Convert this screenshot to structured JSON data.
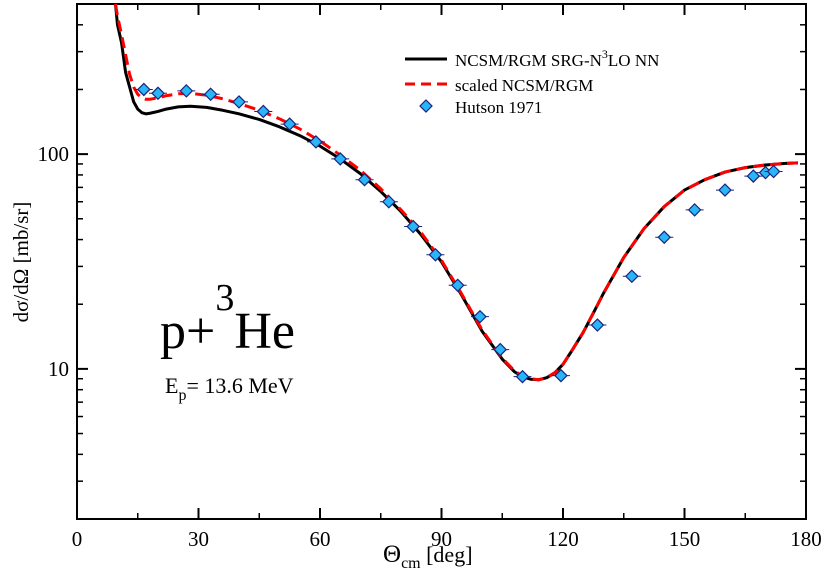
{
  "chart_data": {
    "type": "line",
    "title": "",
    "xlabel": "Θcm [deg]",
    "xlabel_main": "Θ",
    "xlabel_sub": "cm",
    "xlabel_unit": " [deg]",
    "ylabel": "dσ/dΩ [mb/sr]",
    "y_scale": "log",
    "xlim": [
      0,
      180
    ],
    "ylim": [
      2,
      500
    ],
    "x_ticks": [
      0,
      30,
      60,
      90,
      120,
      150,
      180
    ],
    "x_tick_labels": [
      "0",
      "30",
      "60",
      "90",
      "120",
      "150",
      "180"
    ],
    "y_ticks": [
      10,
      100
    ],
    "y_tick_labels": [
      "10",
      "100"
    ],
    "legend_position": "top-right",
    "annotations": {
      "reaction": {
        "p": "p+",
        "sup": "3",
        "nucleus": "He"
      },
      "energy": {
        "main": "E",
        "sub": "p",
        "rest": "= 13.6 MeV"
      }
    },
    "series": [
      {
        "name": "NCSM/RGM SRG-N3LO NN",
        "legend_parts": [
          "NCSM/RGM SRG-N",
          "3",
          "LO NN"
        ],
        "style": "solid",
        "color": "#000000",
        "x": [
          9.5,
          10,
          11,
          12,
          13,
          14,
          15,
          16,
          17,
          18,
          20,
          22,
          25,
          28,
          32,
          36,
          40,
          45,
          50,
          55,
          60,
          65,
          70,
          75,
          80,
          85,
          90,
          95,
          100,
          105,
          108,
          110,
          112,
          114,
          116,
          118,
          120,
          122,
          125,
          128,
          130,
          135,
          140,
          145,
          150,
          155,
          160,
          165,
          170,
          175,
          178
        ],
        "y": [
          500,
          400,
          330,
          240,
          205,
          175,
          162,
          156,
          154,
          155,
          158,
          162,
          166,
          167,
          165,
          160,
          154,
          145,
          134,
          122,
          109,
          95,
          81,
          67,
          54,
          42,
          31.5,
          22,
          15,
          11.1,
          9.7,
          9.2,
          8.95,
          8.9,
          9.1,
          9.6,
          10.5,
          12,
          14.8,
          19,
          22.5,
          33,
          45,
          57,
          68,
          76,
          82.5,
          86.5,
          89,
          90.5,
          91
        ]
      },
      {
        "name": "scaled NCSM/RGM",
        "legend_parts": [
          "scaled NCSM/RGM"
        ],
        "style": "dashed",
        "color": "#ff0000",
        "x": [
          9.5,
          10,
          11,
          12,
          13,
          14,
          15,
          16,
          17,
          18,
          20,
          22,
          25,
          28,
          32,
          36,
          40,
          45,
          50,
          55,
          60,
          65,
          70,
          75,
          80,
          85,
          90,
          95,
          100,
          105,
          108,
          110,
          112,
          114,
          116,
          118,
          120,
          122,
          125,
          128,
          130,
          135,
          140,
          145,
          150,
          155,
          160,
          165,
          170,
          175,
          178
        ],
        "y": [
          500,
          440,
          360,
          290,
          235,
          205,
          190,
          183,
          180,
          180,
          183,
          187,
          191,
          192,
          188,
          181,
          172,
          160,
          146,
          131,
          115,
          99,
          84,
          69,
          55,
          43,
          32,
          22.3,
          15.2,
          11.2,
          9.8,
          9.25,
          9.0,
          8.9,
          9.1,
          9.6,
          10.5,
          12,
          14.8,
          19,
          22.5,
          33,
          45,
          57,
          68,
          76,
          82.5,
          86.5,
          89,
          90.5,
          91
        ]
      },
      {
        "name": "Hutson 1971",
        "legend_parts": [
          "Hutson 1971"
        ],
        "style": "markers",
        "marker": "diamond",
        "color": "#29b6f6",
        "x": [
          16.5,
          20,
          27,
          33,
          40,
          46,
          52.5,
          59,
          65,
          71,
          77,
          83,
          88.5,
          94,
          99.5,
          104.5,
          110,
          119.5,
          128.5,
          137,
          145,
          152.5,
          160,
          167,
          170,
          172
        ],
        "y": [
          200,
          192,
          197,
          190,
          175,
          158,
          138,
          114,
          95,
          76,
          60,
          46,
          34,
          24.5,
          17.5,
          12.3,
          9.2,
          9.3,
          16,
          27,
          41,
          55,
          68,
          79,
          82,
          83
        ]
      }
    ]
  }
}
